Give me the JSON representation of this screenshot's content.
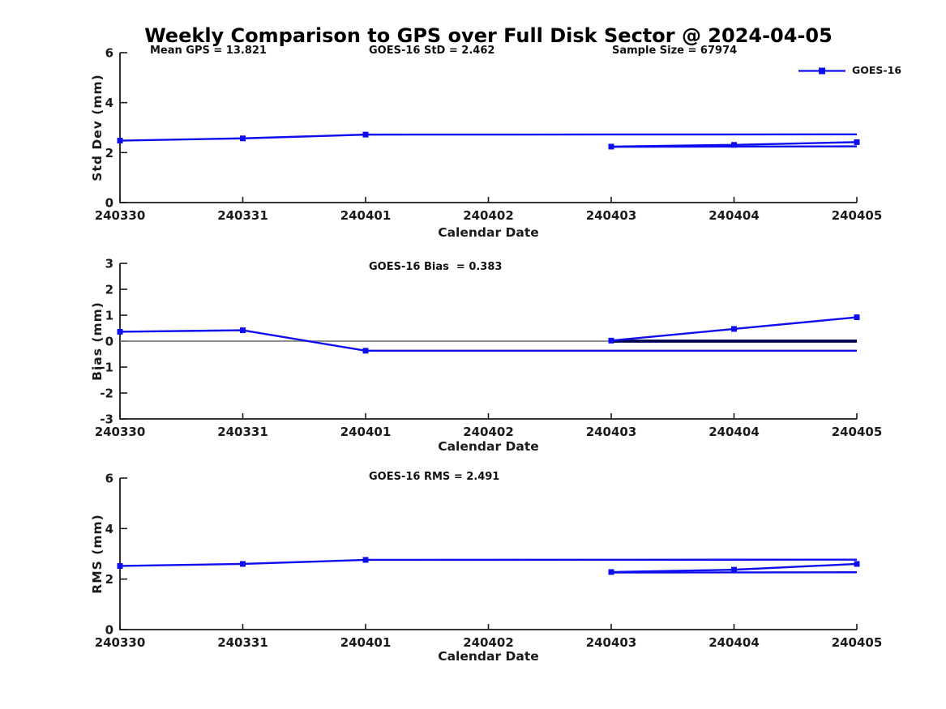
{
  "page": {
    "title": "Weekly Comparison to GPS over Full Disk Sector @ 2024-04-05",
    "background": "#ffffff"
  },
  "colors": {
    "series_blue": "#0d0df0",
    "series_navy": "#000050",
    "zero_line_gray": "#808080",
    "axis": "#1a1a1a",
    "text": "#111111"
  },
  "legend": {
    "label": "GOES-16",
    "line_color": "#0d0df0",
    "marker": "filled-square"
  },
  "chart_data": [
    {
      "type": "line",
      "name": "std-dev-subplot",
      "annotations": [
        {
          "text": "Mean GPS = 13.821"
        },
        {
          "text": "GOES-16 StD = 2.462"
        },
        {
          "text": "Sample Size = 67974"
        }
      ],
      "xlabel": "Calendar Date",
      "ylabel": "Std Dev (mm)",
      "ylim": [
        0,
        6
      ],
      "yticks": [
        0,
        2,
        4,
        6
      ],
      "x_categories": [
        "240330",
        "240331",
        "240401",
        "240402",
        "240403",
        "240404",
        "240405"
      ],
      "grid": false,
      "zero_line": false,
      "series": [
        {
          "name": "goes16-arc1",
          "marker": true,
          "color": "#0d0df0",
          "width": 2.4,
          "points": [
            [
              0,
              2.48
            ],
            [
              1,
              2.57
            ],
            [
              2,
              2.72
            ]
          ]
        },
        {
          "name": "goes16-arc1-extension",
          "marker": false,
          "color": "#0d0df0",
          "width": 2.4,
          "points": [
            [
              2,
              2.72
            ],
            [
              6,
              2.73
            ]
          ]
        },
        {
          "name": "goes16-arc2",
          "marker": true,
          "color": "#0d0df0",
          "width": 2.4,
          "points": [
            [
              4,
              2.24
            ],
            [
              5,
              2.31
            ],
            [
              6,
              2.42
            ]
          ]
        },
        {
          "name": "goes16-arc2-extension",
          "marker": false,
          "color": "#0d0df0",
          "width": 2.4,
          "points": [
            [
              4,
              2.23
            ],
            [
              6,
              2.25
            ]
          ]
        }
      ]
    },
    {
      "type": "line",
      "name": "bias-subplot",
      "annotations": [
        {
          "text": "GOES-16 Bias  = 0.383"
        }
      ],
      "xlabel": "Calendar Date",
      "ylabel": "Bias (mm)",
      "ylim": [
        -3,
        3
      ],
      "yticks": [
        -3,
        -2,
        -1,
        0,
        1,
        2,
        3
      ],
      "x_categories": [
        "240330",
        "240331",
        "240401",
        "240402",
        "240403",
        "240404",
        "240405"
      ],
      "grid": false,
      "zero_line": true,
      "series": [
        {
          "name": "goes16-arc1",
          "marker": true,
          "color": "#0d0df0",
          "width": 2.4,
          "points": [
            [
              0,
              0.36
            ],
            [
              1,
              0.42
            ],
            [
              2,
              -0.37
            ]
          ]
        },
        {
          "name": "goes16-arc1-extension",
          "marker": false,
          "color": "#0d0df0",
          "width": 2.4,
          "points": [
            [
              2,
              -0.37
            ],
            [
              6,
              -0.37
            ]
          ]
        },
        {
          "name": "goes16-zero-overlap",
          "marker": false,
          "color": "#000050",
          "width": 3.8,
          "points": [
            [
              4,
              0.0
            ],
            [
              6,
              0.0
            ]
          ]
        },
        {
          "name": "goes16-arc2",
          "marker": true,
          "color": "#0d0df0",
          "width": 2.4,
          "points": [
            [
              4,
              0.02
            ],
            [
              5,
              0.47
            ],
            [
              6,
              0.92
            ]
          ]
        }
      ]
    },
    {
      "type": "line",
      "name": "rms-subplot",
      "annotations": [
        {
          "text": "GOES-16 RMS = 2.491"
        }
      ],
      "xlabel": "Calendar Date",
      "ylabel": "RMS (mm)",
      "ylim": [
        0,
        6
      ],
      "yticks": [
        0,
        2,
        4,
        6
      ],
      "x_categories": [
        "240330",
        "240331",
        "240401",
        "240402",
        "240403",
        "240404",
        "240405"
      ],
      "grid": false,
      "zero_line": false,
      "series": [
        {
          "name": "goes16-arc1",
          "marker": true,
          "color": "#0d0df0",
          "width": 2.4,
          "points": [
            [
              0,
              2.52
            ],
            [
              1,
              2.6
            ],
            [
              2,
              2.76
            ]
          ]
        },
        {
          "name": "goes16-arc1-extension",
          "marker": false,
          "color": "#0d0df0",
          "width": 2.4,
          "points": [
            [
              2,
              2.76
            ],
            [
              6,
              2.77
            ]
          ]
        },
        {
          "name": "goes16-arc2",
          "marker": true,
          "color": "#0d0df0",
          "width": 2.4,
          "points": [
            [
              4,
              2.28
            ],
            [
              5,
              2.37
            ],
            [
              6,
              2.6
            ]
          ]
        },
        {
          "name": "goes16-arc2-extension",
          "marker": false,
          "color": "#0d0df0",
          "width": 2.4,
          "points": [
            [
              4,
              2.26
            ],
            [
              6,
              2.27
            ]
          ]
        }
      ]
    }
  ]
}
